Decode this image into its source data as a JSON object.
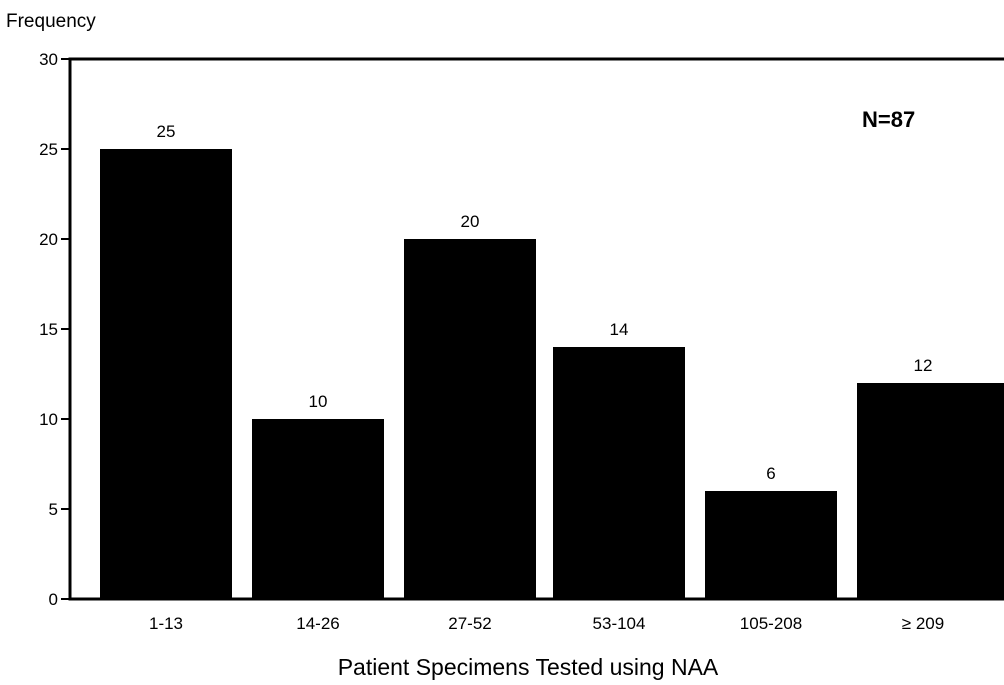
{
  "chart_data": {
    "type": "bar",
    "ylabel": "Frequency",
    "xlabel": "Patient Specimens Tested using NAA",
    "annotation": "N=87",
    "categories": [
      "1-13",
      "14-26",
      "27-52",
      "53-104",
      "105-208",
      "209"
    ],
    "category_prefix_symbol": "≥",
    "values": [
      25,
      10,
      20,
      14,
      6,
      12
    ],
    "value_labels": [
      "25",
      "10",
      "20",
      "14",
      "6",
      "12"
    ],
    "yticks": [
      "0",
      "5",
      "10",
      "15",
      "20",
      "25",
      "30"
    ],
    "ylim": [
      0,
      30
    ],
    "grid": false,
    "bar_color": "#000000"
  }
}
